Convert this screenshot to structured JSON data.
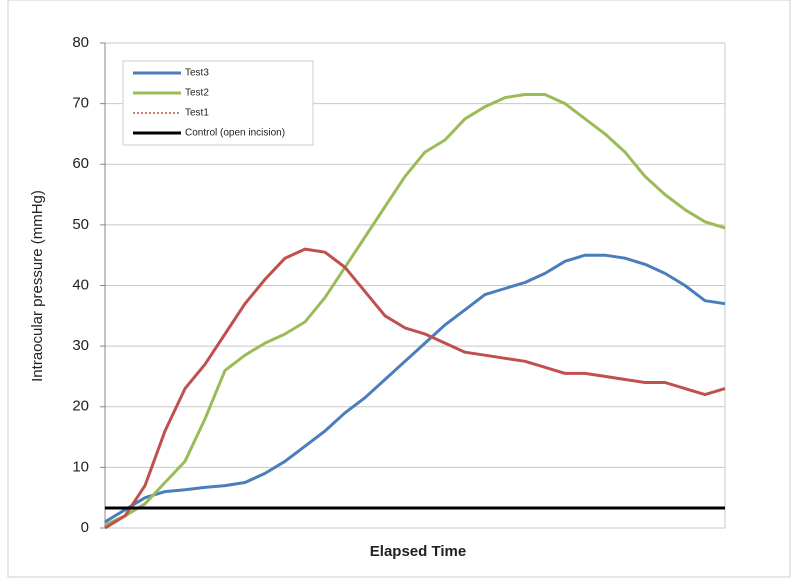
{
  "chart_data": {
    "type": "line",
    "x_label": "Elapsed Time",
    "y_label": "Intraocular pressure (mmHg)",
    "categories": [
      null,
      null,
      null,
      null,
      null,
      null,
      null,
      null,
      null,
      null,
      null,
      null,
      null,
      null,
      null,
      null,
      null,
      null,
      null,
      null,
      null,
      null,
      null,
      null,
      null,
      null,
      null,
      null,
      null,
      null,
      null,
      null
    ],
    "ylim": [
      0,
      80
    ],
    "yticks": [
      0,
      10,
      20,
      30,
      40,
      50,
      60,
      70,
      80
    ],
    "grid": true,
    "legend": "upper-left",
    "series": [
      {
        "name": "Test3",
        "color": "#4a7ebb",
        "values": [
          1,
          3,
          5,
          6,
          6.3,
          6.7,
          7,
          7.5,
          9,
          11,
          13.5,
          16,
          19,
          21.5,
          24.5,
          27.5,
          30.5,
          33.5,
          36,
          38.5,
          39.5,
          40.5,
          42,
          44,
          45,
          45,
          44.5,
          43.5,
          42,
          40,
          37.5,
          37
        ]
      },
      {
        "name": "Test2",
        "color": "#9bbb59",
        "values": [
          0.5,
          2,
          4,
          7.5,
          11,
          18,
          26,
          28.5,
          30.5,
          32,
          34,
          38,
          43,
          48,
          53,
          58,
          62,
          64,
          67.5,
          69.5,
          71,
          71.5,
          71.5,
          70,
          67.5,
          65,
          62,
          58,
          55,
          52.5,
          50.5,
          49.5
        ]
      },
      {
        "name": "Test1",
        "color": "#c0504d",
        "legend_style": "dotted",
        "values": [
          0,
          2,
          7,
          16,
          23,
          27,
          32,
          37,
          41,
          44.5,
          46,
          45.5,
          43,
          39,
          35,
          33,
          32,
          30.5,
          29,
          28.5,
          28,
          27.5,
          26.5,
          25.5,
          25.5,
          25,
          24.5,
          24,
          24,
          23,
          22,
          23
        ]
      },
      {
        "name": "Control (open incision)",
        "color": "#000000",
        "values": [
          3.3,
          3.3,
          3.3,
          3.3,
          3.3,
          3.3,
          3.3,
          3.3,
          3.3,
          3.3,
          3.3,
          3.3,
          3.3,
          3.3,
          3.3,
          3.3,
          3.3,
          3.3,
          3.3,
          3.3,
          3.3,
          3.3,
          3.3,
          3.3,
          3.3,
          3.3,
          3.3,
          3.3,
          3.3,
          3.3,
          3.3,
          3.3
        ]
      }
    ]
  }
}
